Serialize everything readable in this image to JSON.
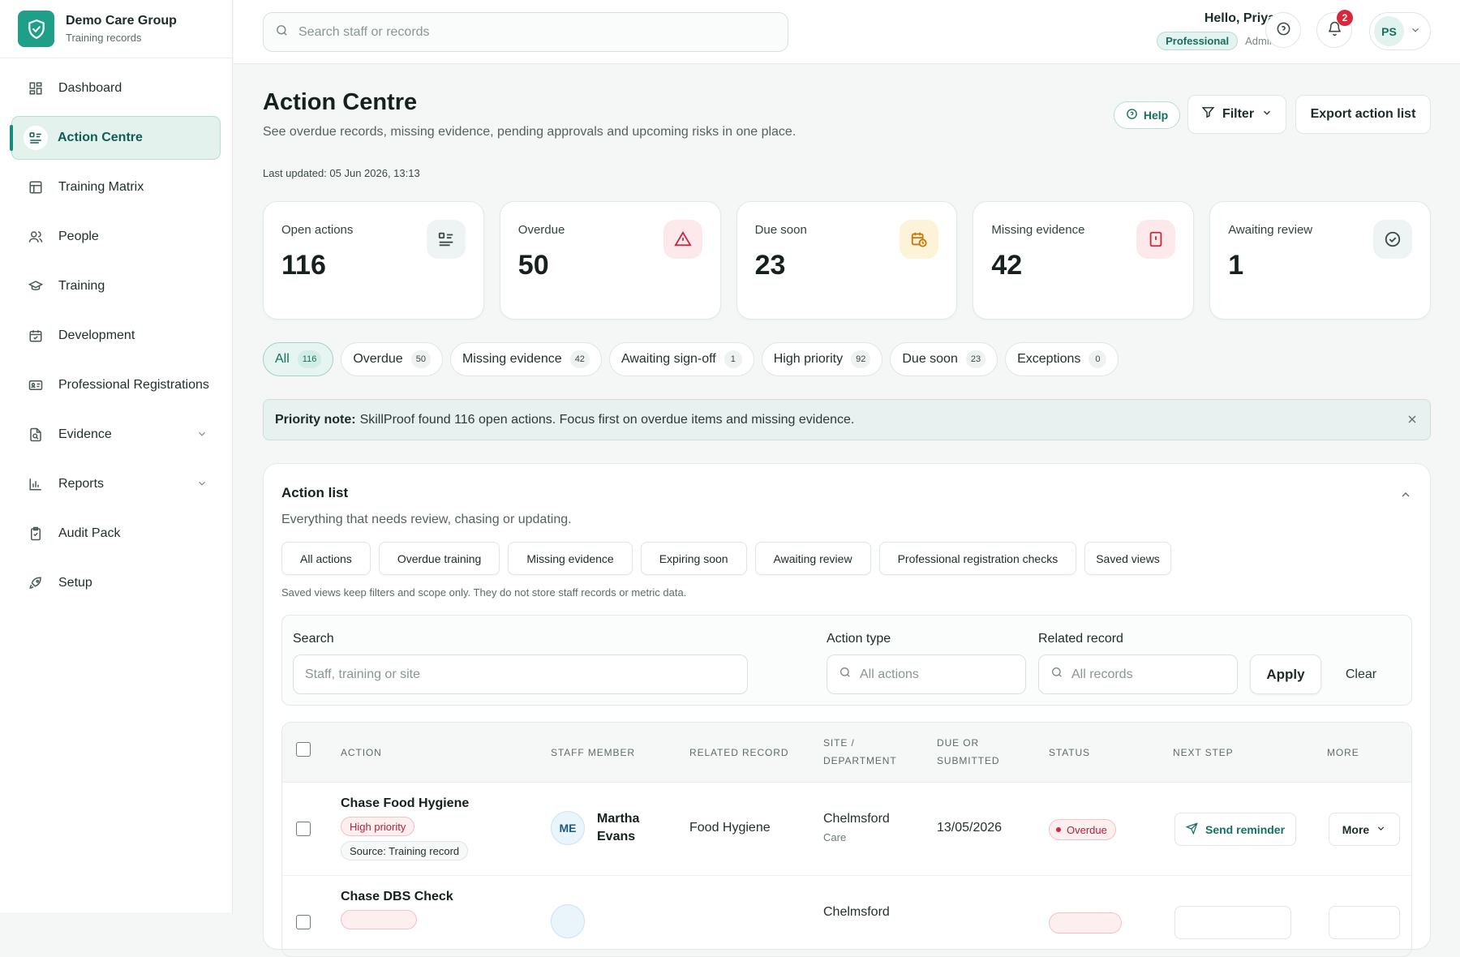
{
  "brand": {
    "title": "Demo Care Group",
    "subtitle": "Training records",
    "icon": "shield-check-icon",
    "color": "#1f9e8a"
  },
  "sidebar": {
    "items": [
      {
        "label": "Dashboard",
        "icon": "grid-icon"
      },
      {
        "label": "Action Centre",
        "icon": "checklist-icon",
        "active": true
      },
      {
        "label": "Training Matrix",
        "icon": "table-icon"
      },
      {
        "label": "People",
        "icon": "people-icon"
      },
      {
        "label": "Training",
        "icon": "graduation-cap-icon"
      },
      {
        "label": "Development",
        "icon": "calendar-check-icon"
      },
      {
        "label": "Professional Registrations",
        "icon": "id-card-icon"
      },
      {
        "label": "Evidence",
        "icon": "file-search-icon",
        "expandable": true
      },
      {
        "label": "Reports",
        "icon": "bar-chart-icon",
        "expandable": true
      },
      {
        "label": "Audit Pack",
        "icon": "clipboard-check-icon"
      },
      {
        "label": "Setup",
        "icon": "rocket-icon"
      }
    ]
  },
  "topbar": {
    "search_placeholder": "Search staff or records",
    "greeting": "Hello, Priya",
    "plan_badge": "Professional",
    "role": "Admin",
    "notification_count": "2",
    "avatar_initials": "PS"
  },
  "page": {
    "title": "Action Centre",
    "subtitle": "See overdue records, missing evidence, pending approvals and upcoming risks in one place.",
    "last_updated": "Last updated: 05 Jun 2026, 13:13",
    "help_label": "Help",
    "filter_label": "Filter",
    "export_label": "Export action list"
  },
  "stats": [
    {
      "label": "Open actions",
      "value": "116",
      "icon": "checklist-icon",
      "tint": "#eef3f3",
      "color": "#3b4947"
    },
    {
      "label": "Overdue",
      "value": "50",
      "icon": "warning-triangle-icon",
      "tint": "#fde9ec",
      "color": "#c62a40"
    },
    {
      "label": "Due soon",
      "value": "23",
      "icon": "calendar-clock-icon",
      "tint": "#fdf3d9",
      "color": "#c47a0a"
    },
    {
      "label": "Missing evidence",
      "value": "42",
      "icon": "file-alert-icon",
      "tint": "#fde9ec",
      "color": "#c62a40"
    },
    {
      "label": "Awaiting review",
      "value": "1",
      "icon": "check-circle-icon",
      "tint": "#eef3f3",
      "color": "#3b4947"
    }
  ],
  "chips": [
    {
      "label": "All",
      "count": "116",
      "active": true
    },
    {
      "label": "Overdue",
      "count": "50"
    },
    {
      "label": "Missing evidence",
      "count": "42"
    },
    {
      "label": "Awaiting sign-off",
      "count": "1"
    },
    {
      "label": "High priority",
      "count": "92"
    },
    {
      "label": "Due soon",
      "count": "23"
    },
    {
      "label": "Exceptions",
      "count": "0"
    }
  ],
  "note": {
    "label": "Priority note:",
    "text": "SkillProof found 116 open actions. Focus first on overdue items and missing evidence."
  },
  "panel": {
    "title": "Action list",
    "subtitle": "Everything that needs review, chasing or updating.",
    "views": [
      "All actions",
      "Overdue training",
      "Missing evidence",
      "Expiring soon",
      "Awaiting review",
      "Professional registration checks",
      "Saved views"
    ],
    "views_note": "Saved views keep filters and scope only. They do not store staff records or metric data.",
    "filters": {
      "search_label": "Search",
      "search_placeholder": "Staff, training or site",
      "type_label": "Action type",
      "type_placeholder": "All actions",
      "record_label": "Related record",
      "record_placeholder": "All records",
      "apply_label": "Apply",
      "clear_label": "Clear"
    }
  },
  "table": {
    "headers": {
      "action": "ACTION",
      "staff": "STAFF MEMBER",
      "record": "RELATED RECORD",
      "site_1": "SITE /",
      "site_2": "DEPARTMENT",
      "due_1": "DUE OR",
      "due_2": "SUBMITTED",
      "status": "STATUS",
      "next": "NEXT STEP",
      "more": "MORE"
    },
    "rows": [
      {
        "title": "Chase Food Hygiene",
        "priority": "High priority",
        "source": "Source: Training record",
        "initials": "ME",
        "staff_first": "Martha",
        "staff_last": "Evans",
        "record": "Food Hygiene",
        "site": "Chelmsford",
        "department": "Care",
        "date": "13/05/2026",
        "status": "Overdue",
        "next_step": "Send reminder",
        "more": "More"
      },
      {
        "title": "Chase DBS Check",
        "site": "Chelmsford"
      }
    ]
  }
}
